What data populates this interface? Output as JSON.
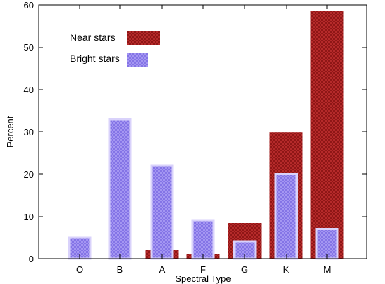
{
  "chart_data": {
    "type": "bar",
    "title": "",
    "xlabel": "Spectral Type",
    "ylabel": "Percent",
    "ylim": [
      0,
      60
    ],
    "yticks": [
      0,
      10,
      20,
      30,
      40,
      50,
      60
    ],
    "grid": false,
    "legend_position": "top-left",
    "categories": [
      "O",
      "B",
      "A",
      "F",
      "G",
      "K",
      "M"
    ],
    "series": [
      {
        "name": "Near stars",
        "color": "#b22222",
        "values": [
          0,
          0,
          2,
          1,
          8.5,
          29.8,
          58.5
        ]
      },
      {
        "name": "Bright stars",
        "color": "#9b8ef0",
        "values": [
          5,
          33,
          22,
          9,
          4,
          20,
          7
        ]
      }
    ]
  }
}
